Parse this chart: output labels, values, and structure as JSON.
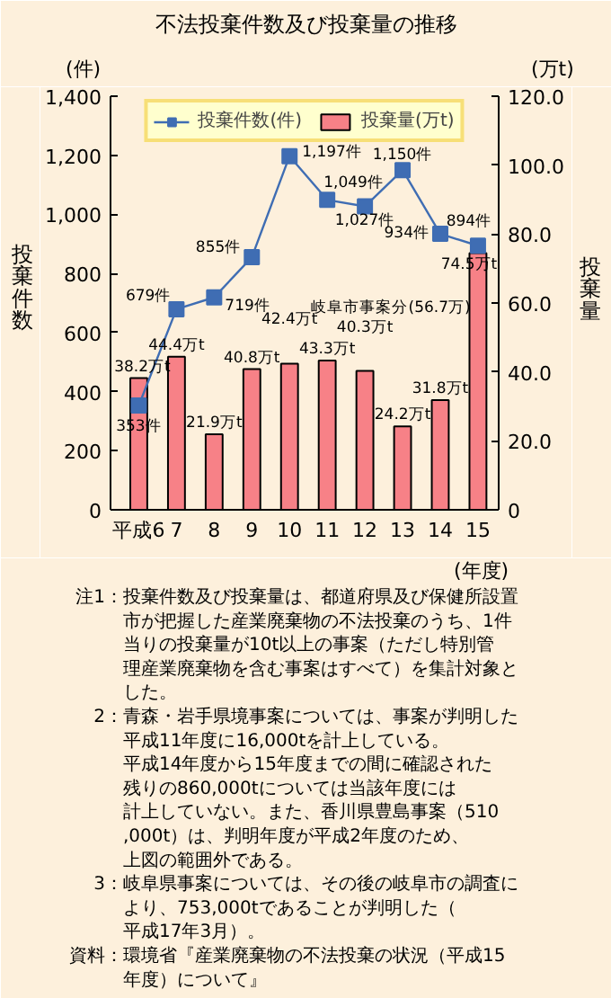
{
  "chart_data": {
    "type": "bar",
    "title": "不法投棄件数及び投棄量の推移",
    "categories": [
      "平成6",
      "7",
      "8",
      "9",
      "10",
      "11",
      "12",
      "13",
      "14",
      "15"
    ],
    "xlabel": "(年度)",
    "ylabel": "投棄件数",
    "y2label": "投棄量",
    "series": [
      {
        "name": "投棄件数(件)",
        "type": "line",
        "color": "#3f6db3",
        "values": [
          353,
          679,
          719,
          855,
          1197,
          1049,
          1027,
          1150,
          934,
          894
        ],
        "value_labels": [
          "353件",
          "679件",
          "719件",
          "855件",
          "1,197件",
          "1,049件",
          "1,027件",
          "1,150件",
          "934件",
          "894件"
        ]
      },
      {
        "name": "投棄量(万t)",
        "axis": "y2",
        "color": "#f78187",
        "values": [
          38.2,
          44.4,
          21.9,
          40.8,
          42.4,
          43.3,
          40.3,
          24.2,
          31.8,
          74.5
        ],
        "value_labels": [
          "38.2万t",
          "44.4万t",
          "21.9万t",
          "40.8万t",
          "42.4万t",
          "43.3万t",
          "40.3万t",
          "24.2万t",
          "31.8万t",
          "74.5万t"
        ]
      }
    ],
    "ylim": [
      0,
      1400
    ],
    "yticks": [
      0,
      200,
      400,
      600,
      800,
      {
        "value": 1000,
        "label": "1,000"
      },
      {
        "value": 1200,
        "label": "1,200"
      },
      {
        "value": 1400,
        "label": "1,400"
      }
    ],
    "y2lim": [
      0,
      120
    ],
    "y2ticks": [
      0,
      {
        "value": 20,
        "label": "20.0"
      },
      {
        "value": 40,
        "label": "40.0"
      },
      {
        "value": 60,
        "label": "60.0"
      },
      {
        "value": 80,
        "label": "80.0"
      },
      {
        "value": 100,
        "label": "100.0"
      },
      {
        "value": 120,
        "label": "120.0"
      }
    ],
    "marker": "square",
    "legend": "top",
    "grid": false,
    "annotations": [
      "(件)",
      "(万t)",
      "岐阜市事案分(56.7万)",
      "注1：投棄件数及び投棄量は、都道府県及び保健所設置市が把握した産業廃棄物の不法投棄のうち、1件当りの投棄量が10t以上の事案（ただし特別管理産業廃棄物を含む事案はすべて）を集計対象とした。",
      "2：青森・岩手県境事案については、事案が判明した平成11年度に16,000tを計上している。平成14年度から15年度までの間に確認された残りの860,000tについては当該年度には計上していない。また、香川県豊島事案（510,000t）は、判明年度が平成2年度のため、上図の範囲外である。",
      "3：岐阜県事案については、その後の岐阜市の調査により、753,000tであることが判明した（平成17年3月）。",
      "資料：環境省『産業廃棄物の不法投棄の状況（平成15年度）について』"
    ]
  }
}
